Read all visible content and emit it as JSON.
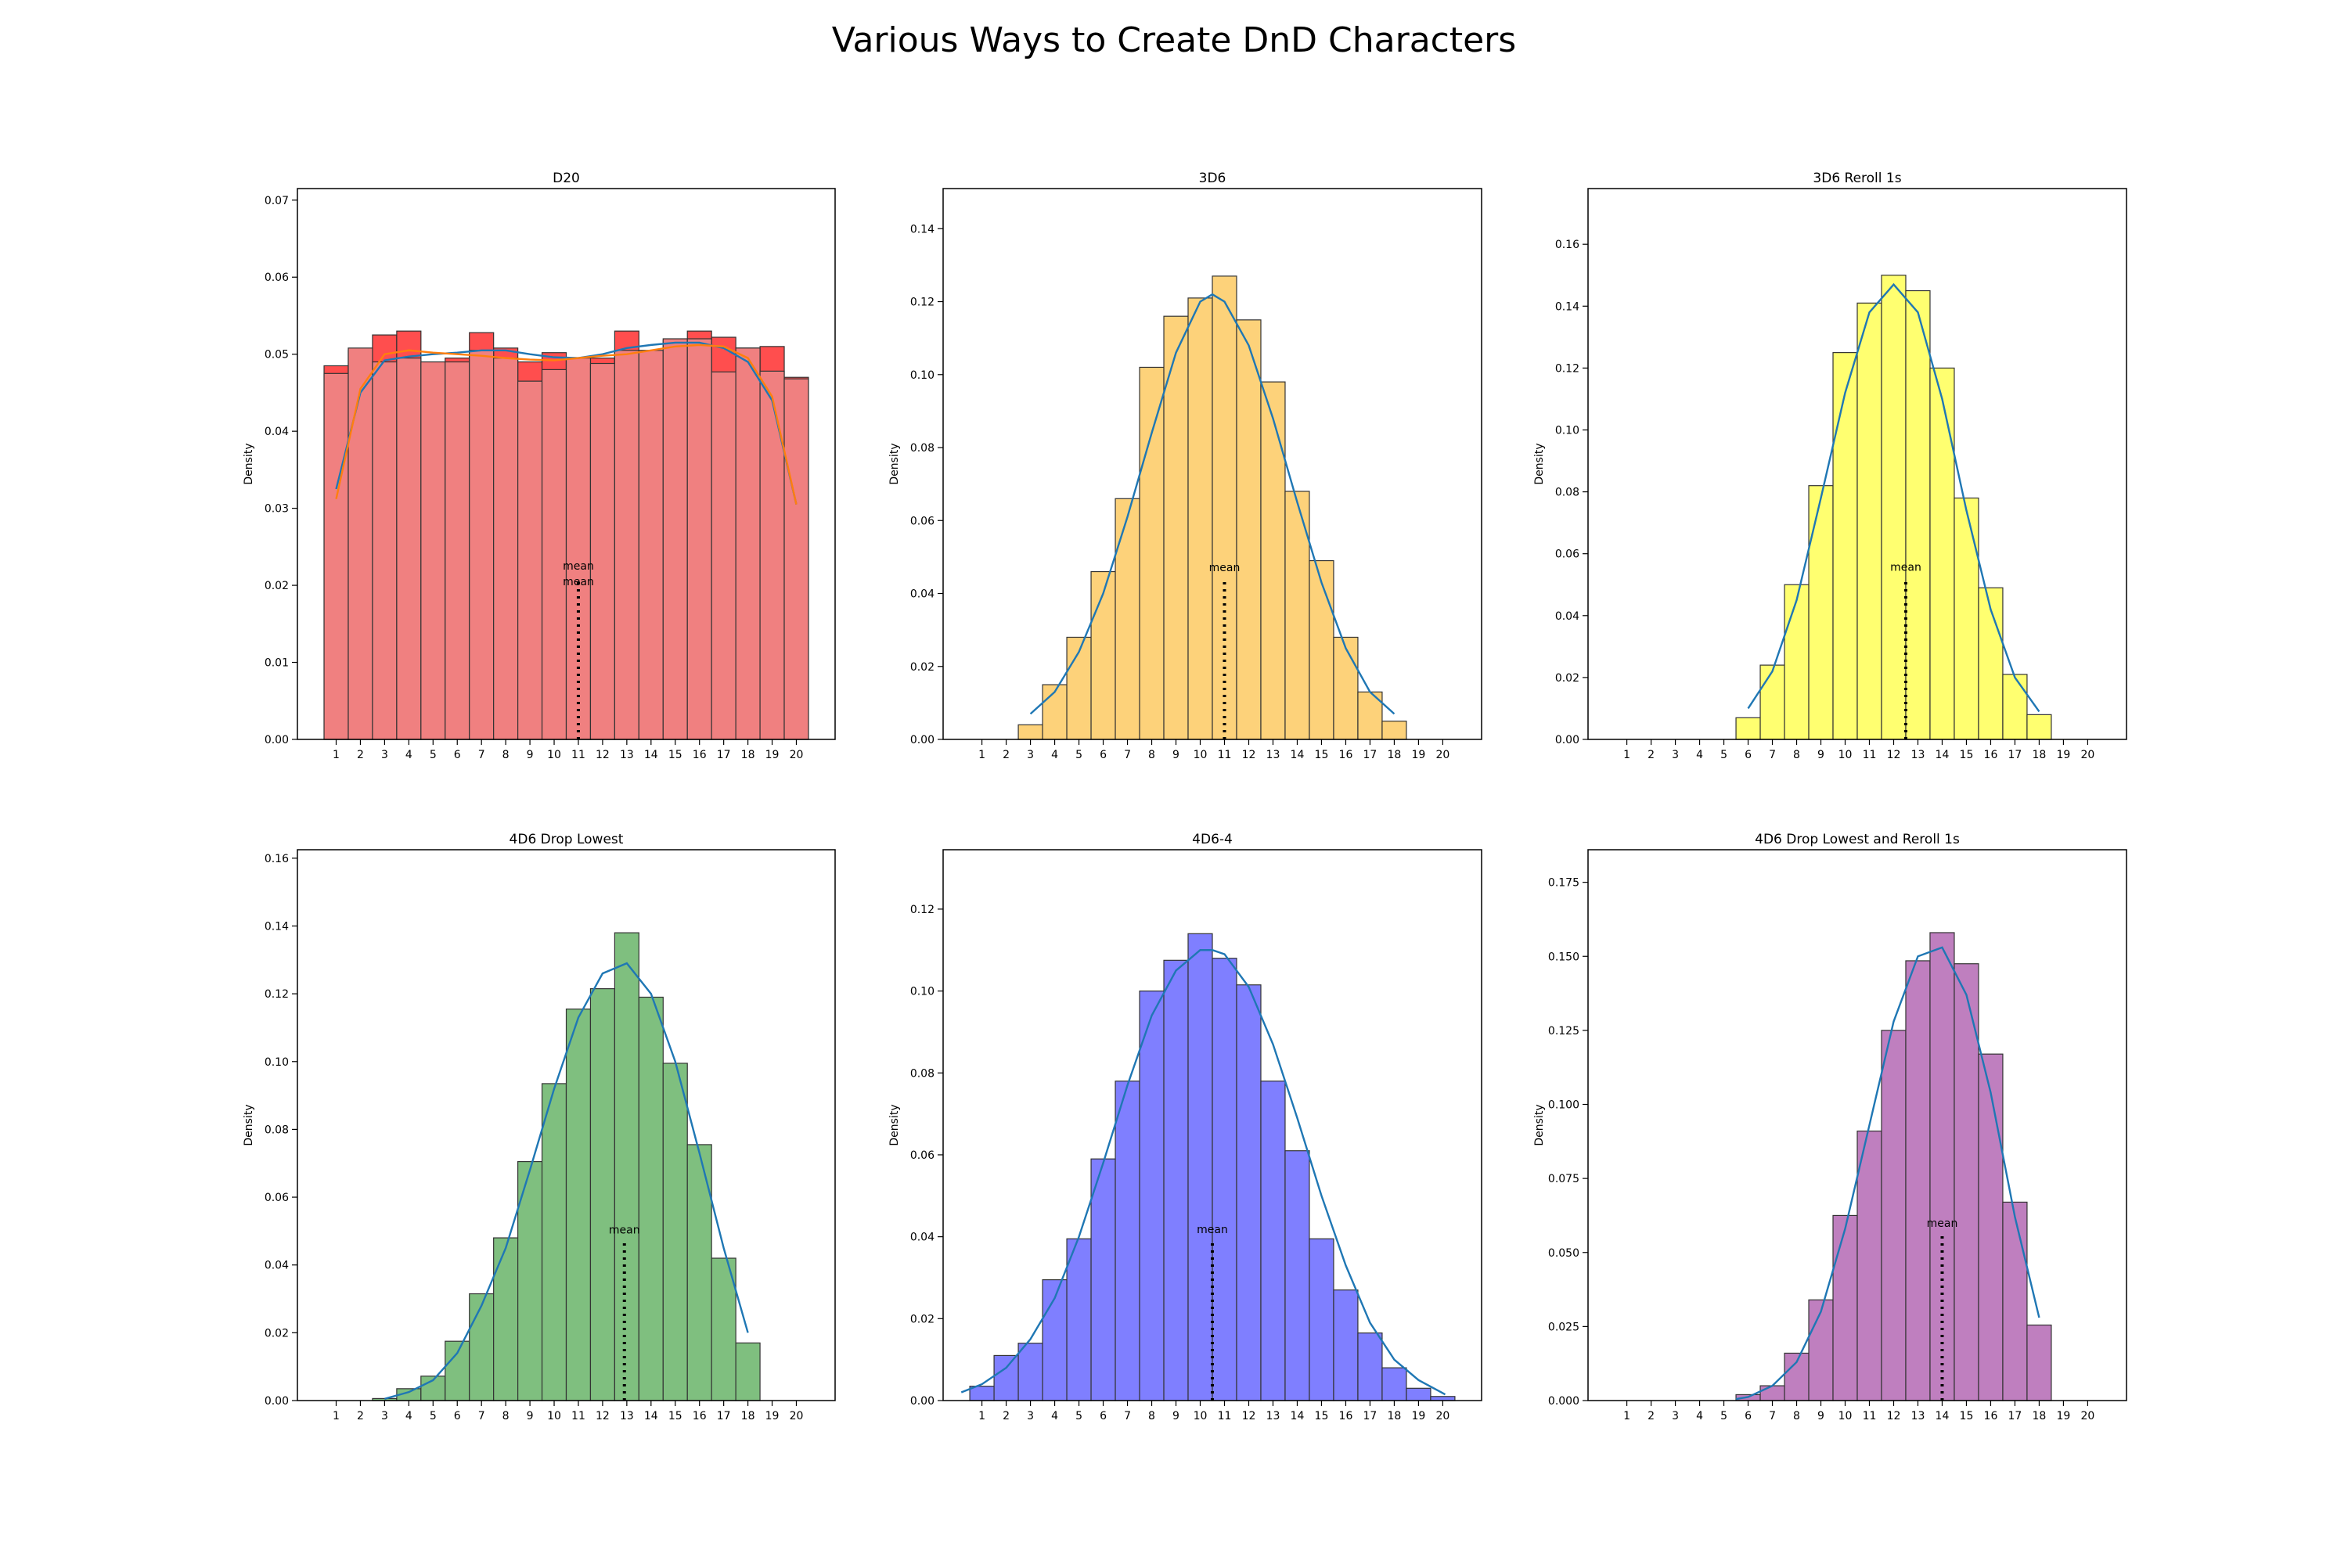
{
  "figure": {
    "title": "Various Ways to Create DnD Characters"
  },
  "chart_data": [
    {
      "type": "bar",
      "title": "D20",
      "xlabel": "",
      "ylabel": "Density",
      "xticks": [
        1,
        2,
        3,
        4,
        5,
        6,
        7,
        8,
        9,
        10,
        11,
        12,
        13,
        14,
        15,
        16,
        17,
        18,
        19,
        20
      ],
      "ylim": [
        0,
        0.0715
      ],
      "yticks": [
        0.0,
        0.01,
        0.02,
        0.03,
        0.04,
        0.05,
        0.06,
        0.07
      ],
      "ytick_decimals": 2,
      "colors": {
        "primary": "#ff4444",
        "secondary": "#f08080",
        "kde": "#1f77b4",
        "kde2": "#ff7f0e"
      },
      "x": [
        1,
        2,
        3,
        4,
        5,
        6,
        7,
        8,
        9,
        10,
        11,
        12,
        13,
        14,
        15,
        16,
        17,
        18,
        19,
        20
      ],
      "series": [
        {
          "values": [
            0.0485,
            0.0505,
            0.0525,
            0.053,
            0.049,
            0.0495,
            0.0528,
            0.0508,
            0.049,
            0.0502,
            0.0495,
            0.0495,
            0.053,
            0.05,
            0.0518,
            0.053,
            0.0522,
            0.0508,
            0.051,
            0.047
          ]
        },
        {
          "values": [
            0.0475,
            0.0508,
            0.049,
            0.0495,
            0.049,
            0.049,
            0.0505,
            0.0495,
            0.0465,
            0.048,
            0.0495,
            0.0488,
            0.0505,
            0.0505,
            0.052,
            0.052,
            0.0477,
            0.0508,
            0.0478,
            0.0468
          ]
        }
      ],
      "kde": [
        {
          "x": [
            1,
            2,
            3,
            4,
            5,
            6,
            7,
            8,
            9,
            10,
            11,
            12,
            13,
            14,
            15,
            16,
            17,
            18,
            19,
            20
          ],
          "y": [
            0.0325,
            0.045,
            0.0492,
            0.0497,
            0.05,
            0.0502,
            0.0505,
            0.0505,
            0.05,
            0.0496,
            0.0495,
            0.05,
            0.0508,
            0.0512,
            0.0515,
            0.0515,
            0.0508,
            0.049,
            0.044,
            0.0305
          ]
        },
        {
          "x": [
            1,
            2,
            3,
            4,
            5,
            6,
            7,
            8,
            9,
            10,
            11,
            12,
            13,
            14,
            15,
            16,
            17,
            18,
            19,
            20
          ],
          "y": [
            0.0312,
            0.0455,
            0.05,
            0.0505,
            0.0502,
            0.05,
            0.0498,
            0.0495,
            0.0493,
            0.0492,
            0.0495,
            0.0498,
            0.05,
            0.0505,
            0.051,
            0.0512,
            0.051,
            0.0495,
            0.0445,
            0.0305
          ]
        }
      ],
      "mean_lines": [
        {
          "x": 11.0,
          "top": 0.021,
          "label": "mean"
        },
        {
          "x": 11.0,
          "top": 0.019,
          "label": "mean"
        }
      ]
    },
    {
      "type": "bar",
      "title": "3D6",
      "xlabel": "",
      "ylabel": "Density",
      "xticks": [
        1,
        2,
        3,
        4,
        5,
        6,
        7,
        8,
        9,
        10,
        11,
        12,
        13,
        14,
        15,
        16,
        17,
        18,
        19,
        20
      ],
      "ylim": [
        0,
        0.151
      ],
      "yticks": [
        0.0,
        0.02,
        0.04,
        0.06,
        0.08,
        0.1,
        0.12,
        0.14
      ],
      "ytick_decimals": 2,
      "colors": {
        "primary": "#fdd27a",
        "kde": "#1f77b4"
      },
      "x": [
        3,
        4,
        5,
        6,
        7,
        8,
        9,
        10,
        11,
        12,
        13,
        14,
        15,
        16,
        17,
        18
      ],
      "series": [
        {
          "values": [
            0.004,
            0.015,
            0.028,
            0.046,
            0.066,
            0.102,
            0.116,
            0.121,
            0.127,
            0.115,
            0.098,
            0.068,
            0.049,
            0.028,
            0.013,
            0.005
          ]
        }
      ],
      "kde": [
        {
          "x": [
            3,
            4,
            5,
            6,
            7,
            8,
            9,
            10,
            10.5,
            11,
            12,
            13,
            14,
            15,
            16,
            17,
            18
          ],
          "y": [
            0.007,
            0.013,
            0.024,
            0.04,
            0.061,
            0.084,
            0.106,
            0.12,
            0.122,
            0.12,
            0.108,
            0.088,
            0.065,
            0.043,
            0.025,
            0.013,
            0.007
          ]
        }
      ],
      "mean_lines": [
        {
          "x": 11.0,
          "top": 0.044,
          "label": "mean"
        }
      ]
    },
    {
      "type": "bar",
      "title": "3D6 Reroll 1s",
      "xlabel": "",
      "ylabel": "Density",
      "xticks": [
        1,
        2,
        3,
        4,
        5,
        6,
        7,
        8,
        9,
        10,
        11,
        12,
        13,
        14,
        15,
        16,
        17,
        18,
        19,
        20
      ],
      "ylim": [
        0,
        0.178
      ],
      "yticks": [
        0.0,
        0.02,
        0.04,
        0.06,
        0.08,
        0.1,
        0.12,
        0.14,
        0.16
      ],
      "ytick_decimals": 2,
      "colors": {
        "primary": "#ffff70",
        "kde": "#1f77b4"
      },
      "x": [
        6,
        7,
        8,
        9,
        10,
        11,
        12,
        13,
        14,
        15,
        16,
        17,
        18
      ],
      "series": [
        {
          "values": [
            0.007,
            0.024,
            0.05,
            0.082,
            0.125,
            0.141,
            0.15,
            0.145,
            0.12,
            0.078,
            0.049,
            0.021,
            0.008
          ]
        }
      ],
      "kde": [
        {
          "x": [
            6,
            7,
            8,
            9,
            10,
            11,
            12,
            13,
            14,
            15,
            16,
            17,
            18
          ],
          "y": [
            0.01,
            0.022,
            0.045,
            0.078,
            0.112,
            0.138,
            0.147,
            0.138,
            0.11,
            0.074,
            0.042,
            0.02,
            0.009
          ]
        }
      ],
      "mean_lines": [
        {
          "x": 12.5,
          "top": 0.052,
          "label": "mean"
        }
      ]
    },
    {
      "type": "bar",
      "title": "4D6 Drop Lowest",
      "xlabel": "",
      "ylabel": "Density",
      "xticks": [
        1,
        2,
        3,
        4,
        5,
        6,
        7,
        8,
        9,
        10,
        11,
        12,
        13,
        14,
        15,
        16,
        17,
        18,
        19,
        20
      ],
      "ylim": [
        0,
        0.1625
      ],
      "yticks": [
        0.0,
        0.02,
        0.04,
        0.06,
        0.08,
        0.1,
        0.12,
        0.14,
        0.16
      ],
      "ytick_decimals": 2,
      "colors": {
        "primary": "#7fbf7f",
        "kde": "#1f77b4"
      },
      "x": [
        3,
        4,
        5,
        6,
        7,
        8,
        9,
        10,
        11,
        12,
        13,
        14,
        15,
        16,
        17,
        18
      ],
      "series": [
        {
          "values": [
            0.0006,
            0.0035,
            0.0072,
            0.0175,
            0.0315,
            0.048,
            0.0705,
            0.0935,
            0.1155,
            0.1215,
            0.138,
            0.119,
            0.0995,
            0.0755,
            0.042,
            0.017
          ]
        }
      ],
      "kde": [
        {
          "x": [
            3,
            4,
            5,
            6,
            7,
            8,
            9,
            10,
            11,
            12,
            13,
            14,
            15,
            16,
            17,
            18
          ],
          "y": [
            0.0005,
            0.0025,
            0.006,
            0.014,
            0.028,
            0.045,
            0.068,
            0.092,
            0.113,
            0.126,
            0.129,
            0.12,
            0.1,
            0.073,
            0.045,
            0.02
          ]
        }
      ],
      "mean_lines": [
        {
          "x": 12.9,
          "top": 0.047,
          "label": "mean"
        }
      ]
    },
    {
      "type": "bar",
      "title": "4D6-4",
      "xlabel": "",
      "ylabel": "Density",
      "xticks": [
        1,
        2,
        3,
        4,
        5,
        6,
        7,
        8,
        9,
        10,
        11,
        12,
        13,
        14,
        15,
        16,
        17,
        18,
        19,
        20
      ],
      "ylim": [
        0,
        0.1345
      ],
      "yticks": [
        0.0,
        0.02,
        0.04,
        0.06,
        0.08,
        0.1,
        0.12
      ],
      "ytick_decimals": 2,
      "colors": {
        "primary": "#7f7fff",
        "kde": "#1f77b4"
      },
      "x": [
        1,
        2,
        3,
        4,
        5,
        6,
        7,
        8,
        9,
        10,
        11,
        12,
        13,
        14,
        15,
        16,
        17,
        18,
        19,
        20
      ],
      "series": [
        {
          "values": [
            0.0035,
            0.011,
            0.014,
            0.0295,
            0.0395,
            0.059,
            0.078,
            0.1,
            0.1075,
            0.114,
            0.108,
            0.1015,
            0.078,
            0.061,
            0.0395,
            0.027,
            0.0165,
            0.008,
            0.003,
            0.001
          ]
        }
      ],
      "kde": [
        {
          "x": [
            0.15,
            1,
            2,
            3,
            4,
            5,
            6,
            7,
            8,
            9,
            10,
            10.5,
            11,
            12,
            13,
            14,
            15,
            16,
            17,
            18,
            19,
            20.1
          ],
          "y": [
            0.002,
            0.004,
            0.008,
            0.015,
            0.025,
            0.04,
            0.058,
            0.077,
            0.094,
            0.105,
            0.11,
            0.11,
            0.109,
            0.101,
            0.087,
            0.069,
            0.05,
            0.033,
            0.019,
            0.01,
            0.005,
            0.0015
          ]
        }
      ],
      "mean_lines": [
        {
          "x": 10.5,
          "top": 0.039,
          "label": "mean"
        }
      ]
    },
    {
      "type": "bar",
      "title": "4D6 Drop Lowest and Reroll 1s",
      "xlabel": "",
      "ylabel": "Density",
      "xticks": [
        1,
        2,
        3,
        4,
        5,
        6,
        7,
        8,
        9,
        10,
        11,
        12,
        13,
        14,
        15,
        16,
        17,
        18,
        19,
        20
      ],
      "ylim": [
        0,
        0.186
      ],
      "yticks": [
        0.0,
        0.025,
        0.05,
        0.075,
        0.1,
        0.125,
        0.15,
        0.175
      ],
      "ytick_decimals": 3,
      "colors": {
        "primary": "#bf7fbf",
        "kde": "#1f77b4"
      },
      "x": [
        6,
        7,
        8,
        9,
        10,
        11,
        12,
        13,
        14,
        15,
        16,
        17,
        18
      ],
      "series": [
        {
          "values": [
            0.002,
            0.005,
            0.016,
            0.034,
            0.0625,
            0.091,
            0.125,
            0.1485,
            0.158,
            0.1475,
            0.117,
            0.067,
            0.0255
          ]
        }
      ],
      "kde": [
        {
          "x": [
            5.5,
            6,
            7,
            8,
            9,
            10,
            11,
            12,
            13,
            14,
            15,
            16,
            17,
            18
          ],
          "y": [
            0.0005,
            0.0012,
            0.005,
            0.013,
            0.03,
            0.058,
            0.093,
            0.128,
            0.15,
            0.153,
            0.137,
            0.104,
            0.062,
            0.028
          ]
        }
      ],
      "mean_lines": [
        {
          "x": 14.0,
          "top": 0.056,
          "label": "mean"
        }
      ]
    }
  ]
}
